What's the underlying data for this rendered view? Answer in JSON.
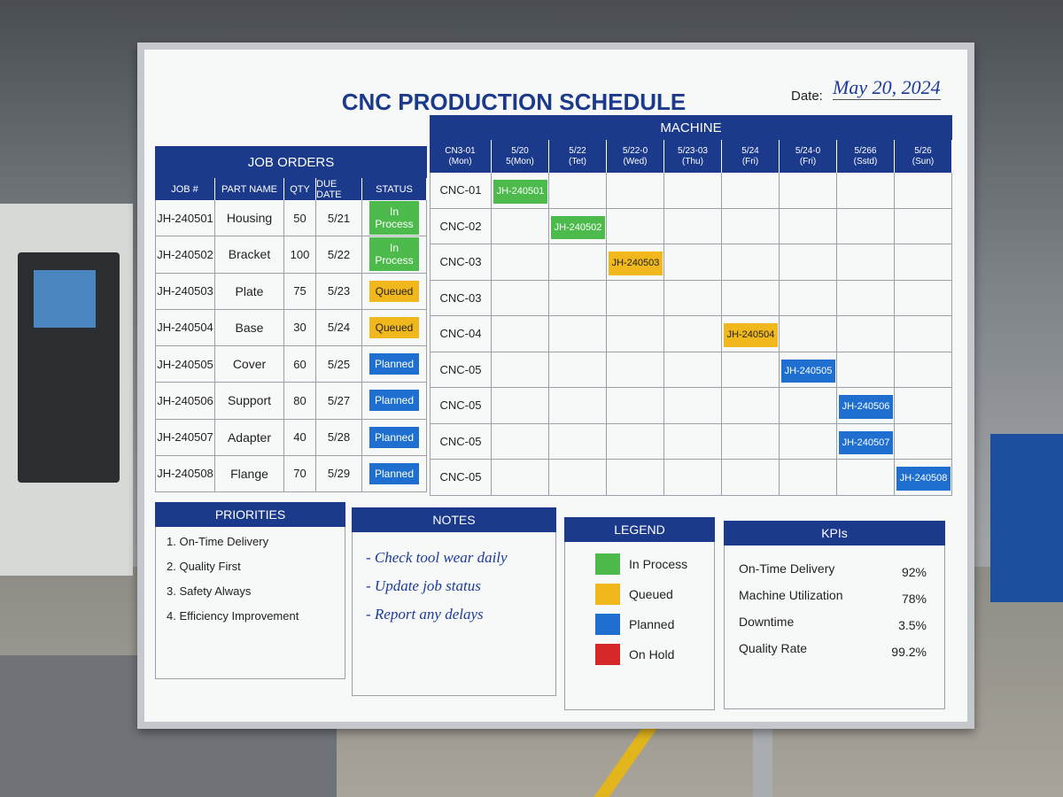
{
  "title": "CNC PRODUCTION SCHEDULE",
  "date_label": "Date:",
  "date": "May 20, 2024",
  "job_orders": {
    "header": "JOB ORDERS",
    "columns": [
      "JOB #",
      "PART NAME",
      "QTY",
      "DUE DATE",
      "STATUS"
    ],
    "rows": [
      [
        "JH-240501",
        "Housing",
        "50",
        "5/21",
        "In Process"
      ],
      [
        "JH-240502",
        "Bracket",
        "100",
        "5/22",
        "In Process"
      ],
      [
        "JH-240503",
        "Plate",
        "75",
        "5/23",
        "Queued"
      ],
      [
        "JH-240504",
        "Base",
        "30",
        "5/24",
        "Queued"
      ],
      [
        "JH-240505",
        "Cover",
        "60",
        "5/25",
        "Planned"
      ],
      [
        "JH-240506",
        "Support",
        "80",
        "5/27",
        "Planned"
      ],
      [
        "JH-240507",
        "Adapter",
        "40",
        "5/28",
        "Planned"
      ],
      [
        "JH-240508",
        "Flange",
        "70",
        "5/29",
        "Planned"
      ]
    ]
  },
  "machine": {
    "header": "MACHINE",
    "columns": [
      "CN3-01\n(Mon)",
      "5/20\n5(Mon)",
      "5/22\n(Tet)",
      "5/22-0\n(Wed)",
      "5/23-03\n(Thu)",
      "5/24\n(Fri)",
      "5/24-0\n(Fri)",
      "5/266\n(Sstd)",
      "5/26\n(Sun)"
    ],
    "rows": [
      "CNC-01",
      "CNC-02",
      "CNC-03",
      "CNC-03",
      "CNC-04",
      "CNC-05",
      "CNC-05",
      "CNC-05",
      "CNC-05"
    ],
    "assignments": [
      {
        "row": 0,
        "column": 1,
        "label": "JH-240501",
        "color": "#4cbb4c"
      },
      {
        "row": 1,
        "column": 2,
        "label": "JH-240502",
        "color": "#4cbb4c"
      },
      {
        "row": 2,
        "column": 3,
        "label": "JH-240503",
        "color": "#f0b81c"
      },
      {
        "row": 4,
        "column": 5,
        "label": "JH-240504",
        "color": "#f0b81c"
      },
      {
        "row": 5,
        "column": 6,
        "label": "JH-240505",
        "color": "#1f6fd0"
      },
      {
        "row": 6,
        "column": 7,
        "label": "JH-240506",
        "color": "#1f6fd0"
      },
      {
        "row": 7,
        "column": 7,
        "label": "JH-240507",
        "color": "#1f6fd0"
      },
      {
        "row": 8,
        "column": 8,
        "label": "JH-240508",
        "color": "#1f6fd0"
      }
    ]
  },
  "priorities": {
    "header": "PRIORITIES",
    "items": [
      "1. On-Time Delivery",
      "2. Quality First",
      "3. Safety Always",
      "4. Efficiency Improvement"
    ]
  },
  "notes": {
    "header": "NOTES",
    "items": [
      "- Check tool wear daily",
      "- Update job status",
      "- Report any delays"
    ]
  },
  "legend": {
    "header": "LEGEND",
    "items": [
      {
        "label": "In Process",
        "color": "#4cbb4c"
      },
      {
        "label": "Queued",
        "color": "#f0b81c"
      },
      {
        "label": "Planned",
        "color": "#1f6fd0"
      },
      {
        "label": "On Hold",
        "color": "#d62828"
      }
    ]
  },
  "kpis": {
    "header": "KPIs",
    "items": [
      {
        "label": "On-Time Delivery",
        "value": "92%"
      },
      {
        "label": "Machine Utilization",
        "value": "78%"
      },
      {
        "label": "Downtime",
        "value": "3.5%"
      },
      {
        "label": "Quality Rate",
        "value": "99.2%"
      }
    ]
  }
}
